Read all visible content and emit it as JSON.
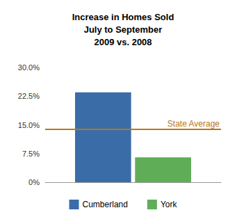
{
  "chart_data": {
    "type": "bar",
    "title": [
      "Increase in Homes Sold",
      "July to September",
      "2009 vs. 2008"
    ],
    "categories": [
      null
    ],
    "series": [
      {
        "name": "Cumberland",
        "color": "#3a6ca8",
        "values": [
          23.5
        ]
      },
      {
        "name": "York",
        "color": "#5fae57",
        "values": [
          6.5
        ]
      }
    ],
    "reference_line": {
      "label": "State Average",
      "value": 13.8,
      "color": "#b8761a"
    },
    "ylim": [
      0,
      30
    ],
    "yticks": [
      {
        "value": 0,
        "label": "0%"
      },
      {
        "value": 7.5,
        "label": "7.5%"
      },
      {
        "value": 15,
        "label": "15.0%"
      },
      {
        "value": 22.5,
        "label": "22.5%"
      },
      {
        "value": 30,
        "label": "30.0%"
      }
    ],
    "grid": false,
    "legend": "bottom"
  }
}
